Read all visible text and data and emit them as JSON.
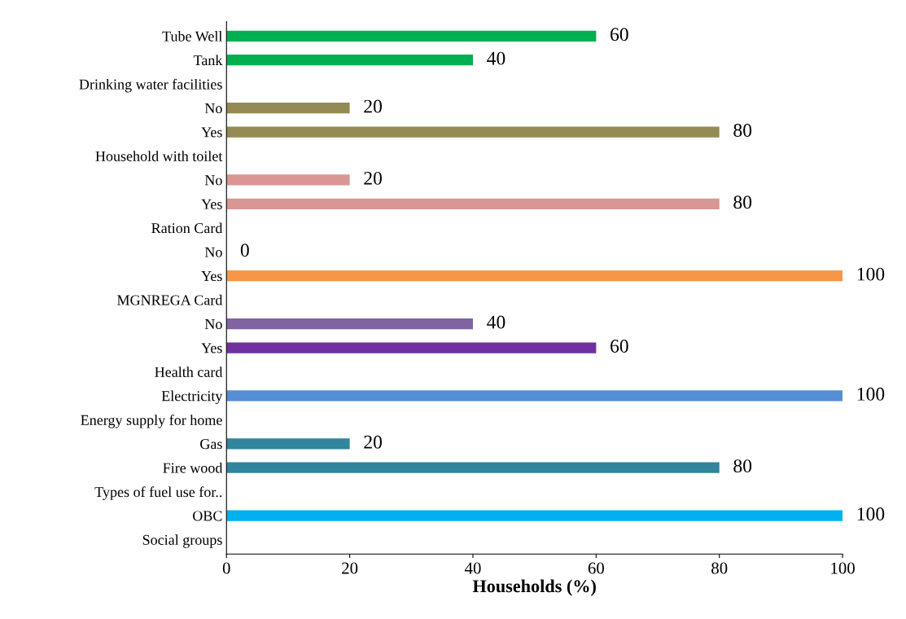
{
  "chart_data": {
    "type": "bar",
    "orientation": "horizontal",
    "xlabel": "Households (%)",
    "categories": [
      "Tube Well",
      "Tank",
      "Drinking water facilities",
      "No",
      "Yes",
      "Household with toilet",
      "No",
      "Yes",
      "Ration Card",
      "No",
      "Yes",
      "MGNREGA Card",
      "No",
      "Yes",
      "Health card",
      "Electricity",
      "Energy supply for home",
      "Gas",
      "Fire wood",
      "Types of fuel use for..",
      "OBC",
      "Social groups"
    ],
    "values": [
      60,
      40,
      null,
      20,
      80,
      null,
      20,
      80,
      null,
      0,
      100,
      null,
      40,
      60,
      null,
      100,
      null,
      20,
      80,
      null,
      100,
      null
    ],
    "colors": [
      "#00b050",
      "#00b050",
      "#00b050",
      "#948a54",
      "#948a54",
      "#948a54",
      "#d99694",
      "#d99694",
      "#d99694",
      "#f79646",
      "#f79646",
      "#f79646",
      "#8064a2",
      "#7030a0",
      "#7030a0",
      "#558ed5",
      "#558ed5",
      "#31859c",
      "#31859c",
      "#31859c",
      "#00b0f0",
      "#00b0f0"
    ],
    "xlim": [
      0,
      100
    ],
    "xticks": [
      0,
      20,
      40,
      60,
      80,
      100
    ],
    "data_labels": true,
    "grid": false,
    "legend": false
  }
}
